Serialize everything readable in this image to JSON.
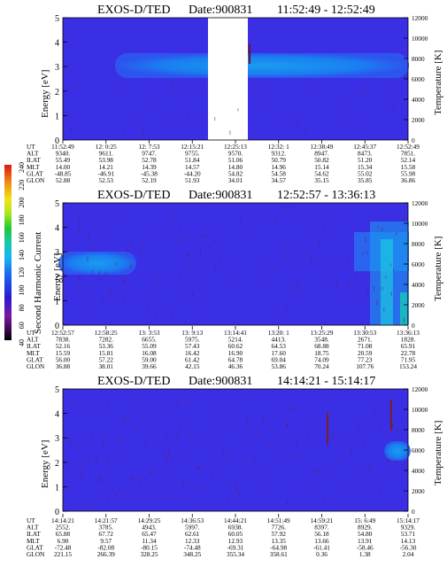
{
  "colors": {
    "background": "#3b2fe6",
    "colorbar": [
      "#000000",
      "#5a0a78",
      "#8a1aa8",
      "#1a1adc",
      "#1a5cf0",
      "#19b4f0",
      "#15c8b4",
      "#22c832",
      "#a8e61e",
      "#f0e614",
      "#f08c14",
      "#dc1414"
    ]
  },
  "colorbar": {
    "label": "Second Harmonic Current",
    "ticks": [
      "40",
      "60",
      "80",
      "100",
      "120",
      "140",
      "160",
      "180",
      "200",
      "220",
      "240"
    ]
  },
  "row_labels": [
    "UT",
    "ALT",
    "ILAT",
    "MLT",
    "GLAT",
    "GLON"
  ],
  "panels": [
    {
      "title": "EXOS-D/TED Date:900831 11:52:49 - 12:52:49",
      "title_name": "EXOS-D/TED",
      "title_date": "Date:900831",
      "title_range": "11:52:49 - 12:52:49",
      "ylabel_left": "Energy [eV]",
      "ylabel_right": "Temperature [K]",
      "yticks_left": [
        "0",
        "1",
        "2",
        "3",
        "4",
        "5"
      ],
      "yticks_right": [
        "0",
        "2000",
        "4000",
        "6000",
        "8000",
        "10000",
        "12000"
      ],
      "table": [
        [
          "11:52:49",
          "12: 0:25",
          "12: 7:53",
          "12:15:21",
          "12:25:13",
          "12:32: 1",
          "12:38:49",
          "12:45:37",
          "12:52:49"
        ],
        [
          "9340.",
          "9611.",
          "9747.",
          "9755.",
          "9570.",
          "9312.",
          "8947.",
          "8473.",
          "7851."
        ],
        [
          "55.49",
          "53.98",
          "52.78",
          "51.84",
          "51.06",
          "50.79",
          "50.82",
          "51.20",
          "52.14"
        ],
        [
          "14.00",
          "14.21",
          "14.39",
          "14.57",
          "14.80",
          "14.96",
          "15.14",
          "15.34",
          "15.58"
        ],
        [
          "-48.85",
          "-46.91",
          "-45.38",
          "-44.20",
          "54.82",
          "54.58",
          "54.62",
          "55.02",
          "55.98"
        ],
        [
          "52.88",
          "52.53",
          "52.19",
          "51.93",
          "34.01",
          "34.57",
          "35.15",
          "35.85",
          "36.86"
        ]
      ]
    },
    {
      "title": "EXOS-D/TED Date:900831 12:52:57 - 13:36:13",
      "title_name": "EXOS-D/TED",
      "title_date": "Date:900831",
      "title_range": "12:52:57 - 13:36:13",
      "ylabel_left": "Energy [eV]",
      "ylabel_right": "Temperature [K]",
      "yticks_left": [
        "0",
        "1",
        "2",
        "3",
        "4",
        "5"
      ],
      "yticks_right": [
        "0",
        "2000",
        "4000",
        "6000",
        "8000",
        "10000",
        "12000"
      ],
      "table": [
        [
          "12:52:57",
          "12:58:25",
          "13: 3:53",
          "13: 9:13",
          "13:14:41",
          "13:20: 1",
          "13:25:29",
          "13:30:53",
          "13:36:13"
        ],
        [
          "7838.",
          "7282.",
          "6655.",
          "5975.",
          "5214.",
          "4413.",
          "3548.",
          "2671.",
          "1828."
        ],
        [
          "52.16",
          "53.36",
          "55.09",
          "57.43",
          "60.62",
          "64.53",
          "68.88",
          "71.08",
          "65.91"
        ],
        [
          "15.59",
          "15.81",
          "16.08",
          "16.42",
          "16.90",
          "17.60",
          "18.75",
          "20.59",
          "22.78"
        ],
        [
          "56.00",
          "57.22",
          "59.00",
          "61.42",
          "64.78",
          "69.04",
          "74.09",
          "77.23",
          "71.95"
        ],
        [
          "36.88",
          "38.01",
          "39.66",
          "42.15",
          "46.36",
          "53.86",
          "70.24",
          "107.76",
          "153.24"
        ]
      ]
    },
    {
      "title": "EXOS-D/TED Date:900831 14:14:21 - 15:14:17",
      "title_name": "EXOS-D/TED",
      "title_date": "Date:900831",
      "title_range": "14:14:21 - 15:14:17",
      "ylabel_left": "Energy [eV]",
      "ylabel_right": "Temperature [K]",
      "yticks_left": [
        "0",
        "1",
        "2",
        "3",
        "4",
        "5"
      ],
      "yticks_right": [
        "0",
        "2000",
        "4000",
        "6000",
        "8000",
        "10000",
        "12000"
      ],
      "table": [
        [
          "14:14:21",
          "14:21:57",
          "14:29:25",
          "14:36:53",
          "14:44:21",
          "14:51:49",
          "14:59:21",
          "15: 6:49",
          "15:14:17"
        ],
        [
          "2552.",
          "3785.",
          "4943.",
          "5997.",
          "6938.",
          "7726.",
          "8397.",
          "8929.",
          "9329."
        ],
        [
          "65.88",
          "67.72",
          "65.47",
          "62.61",
          "60.05",
          "57.92",
          "56.18",
          "54.80",
          "53.71"
        ],
        [
          "6.90",
          "9.57",
          "11.34",
          "12.33",
          "12.93",
          "13.35",
          "13.66",
          "13.91",
          "14.13"
        ],
        [
          "-72.48",
          "-82.08",
          "-80.15",
          "-74.48",
          "-69.31",
          "-64.98",
          "-61.41",
          "-58.46",
          "-56.30"
        ],
        [
          "221.15",
          "266.39",
          "328.25",
          "348.25",
          "355.34",
          "358.61",
          "0.36",
          "1.38",
          "2.04"
        ]
      ]
    }
  ],
  "chart_data": [
    {
      "type": "heatmap",
      "title": "EXOS-D/TED Date:900831 11:52:49 - 12:52:49",
      "ylabel": "Energy [eV]",
      "ylabel_right": "Temperature [K]",
      "ylim": [
        0,
        5
      ],
      "ylim_right": [
        0,
        12000
      ],
      "x_ticks": [
        "11:52:49",
        "12: 0:25",
        "12: 7:53",
        "12:15:21",
        "12:25:13",
        "12:32: 1",
        "12:38:49",
        "12:45:37",
        "12:52:49"
      ],
      "temperature_band_K": [
        [
          11.0,
          7600,
          8100
        ],
        [
          12.0,
          5600,
          8300
        ],
        [
          12.1,
          5600,
          8300
        ],
        [
          12.25,
          5600,
          7900
        ],
        [
          12.88,
          6400,
          7400
        ]
      ],
      "data_gap": {
        "from": "12:18",
        "to": "12:25"
      },
      "colorbar_label": "Second Harmonic Current",
      "colorbar_range": [
        40,
        240
      ]
    },
    {
      "type": "heatmap",
      "title": "EXOS-D/TED Date:900831 12:52:57 - 13:36:13",
      "ylabel": "Energy [eV]",
      "ylabel_right": "Temperature [K]",
      "ylim": [
        0,
        5
      ],
      "ylim_right": [
        0,
        12000
      ],
      "x_ticks": [
        "12:52:57",
        "12:58:25",
        "13: 3:53",
        "13: 9:13",
        "13:14:41",
        "13:20: 1",
        "13:25:29",
        "13:30:53",
        "13:36:13"
      ],
      "temperature_band_K": [
        [
          12.88,
          5600,
          7300
        ],
        [
          12.98,
          6000,
          6800
        ]
      ],
      "colorbar_label": "Second Harmonic Current",
      "colorbar_range": [
        40,
        240
      ]
    },
    {
      "type": "heatmap",
      "title": "EXOS-D/TED Date:900831 14:14:21 - 15:14:17",
      "ylabel": "Energy [eV]",
      "ylabel_right": "Temperature [K]",
      "ylim": [
        0,
        5
      ],
      "ylim_right": [
        0,
        12000
      ],
      "x_ticks": [
        "14:14:21",
        "14:21:57",
        "14:29:25",
        "14:36:53",
        "14:44:21",
        "14:51:49",
        "14:59:21",
        "15: 6:49",
        "15:14:17"
      ],
      "temperature_band_K": [
        [
          15.12,
          5800,
          6600
        ],
        [
          15.23,
          6000,
          6900
        ]
      ],
      "colorbar_label": "Second Harmonic Current",
      "colorbar_range": [
        40,
        240
      ]
    }
  ]
}
